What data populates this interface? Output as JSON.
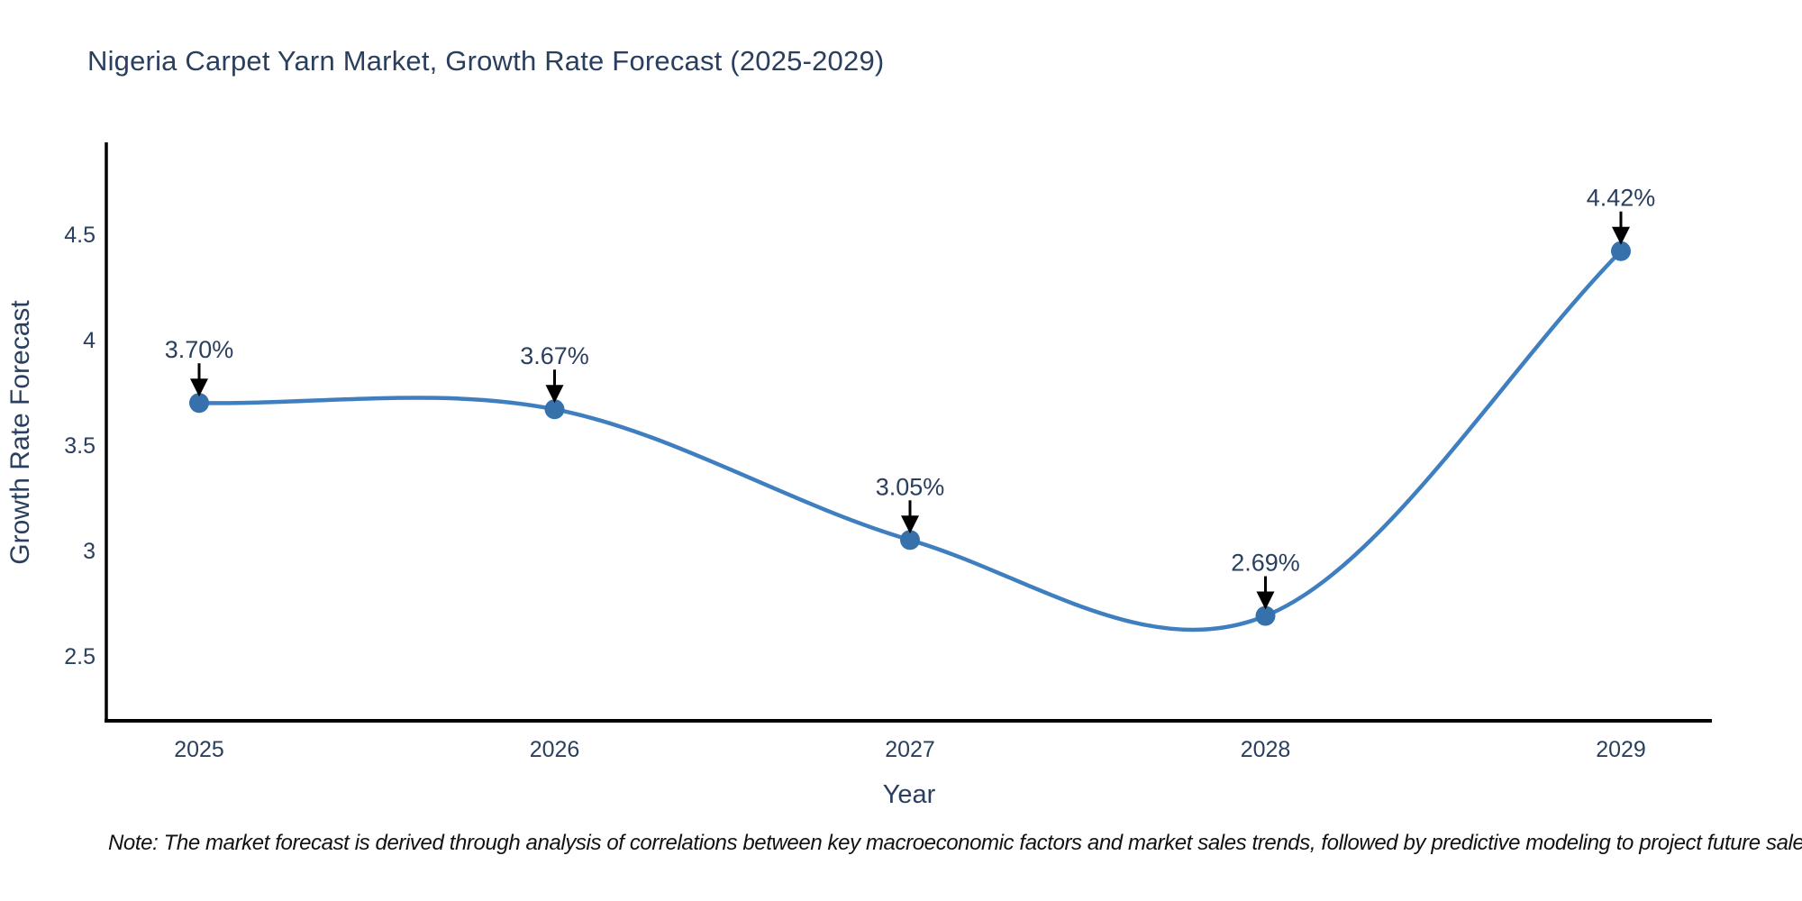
{
  "chart_data": {
    "type": "line",
    "title": "Nigeria Carpet Yarn Market, Growth Rate Forecast (2025-2029)",
    "xlabel": "Year",
    "ylabel": "Growth Rate Forecast",
    "categories": [
      "2025",
      "2026",
      "2027",
      "2028",
      "2029"
    ],
    "series": [
      {
        "name": "Growth Rate Forecast",
        "values": [
          3.7,
          3.67,
          3.05,
          2.69,
          4.42
        ]
      }
    ],
    "point_labels": [
      "3.70%",
      "3.67%",
      "3.05%",
      "2.69%",
      "4.42%"
    ],
    "ytick_values": [
      4.5,
      4,
      3.5,
      3,
      2.5
    ],
    "ytick_labels": [
      "4.5",
      "4",
      "3.5",
      "3",
      "2.5"
    ],
    "ylim": [
      2.19,
      4.93
    ],
    "line_shape": "spline",
    "markers": true,
    "grid": false,
    "legend": "none",
    "annotation_arrows": true,
    "colors": {
      "line": "#3f7fbf",
      "marker": "#3671ab",
      "axis": "#000000",
      "text": "#2a3f5f",
      "annotation": "#2a3f5f",
      "arrow": "#000000",
      "note": "#111111"
    }
  },
  "note": {
    "text": "Note: The market forecast is derived through analysis of correlations between key macroeconomic factors and market sales trends, followed by predictive modeling to project future sales"
  }
}
